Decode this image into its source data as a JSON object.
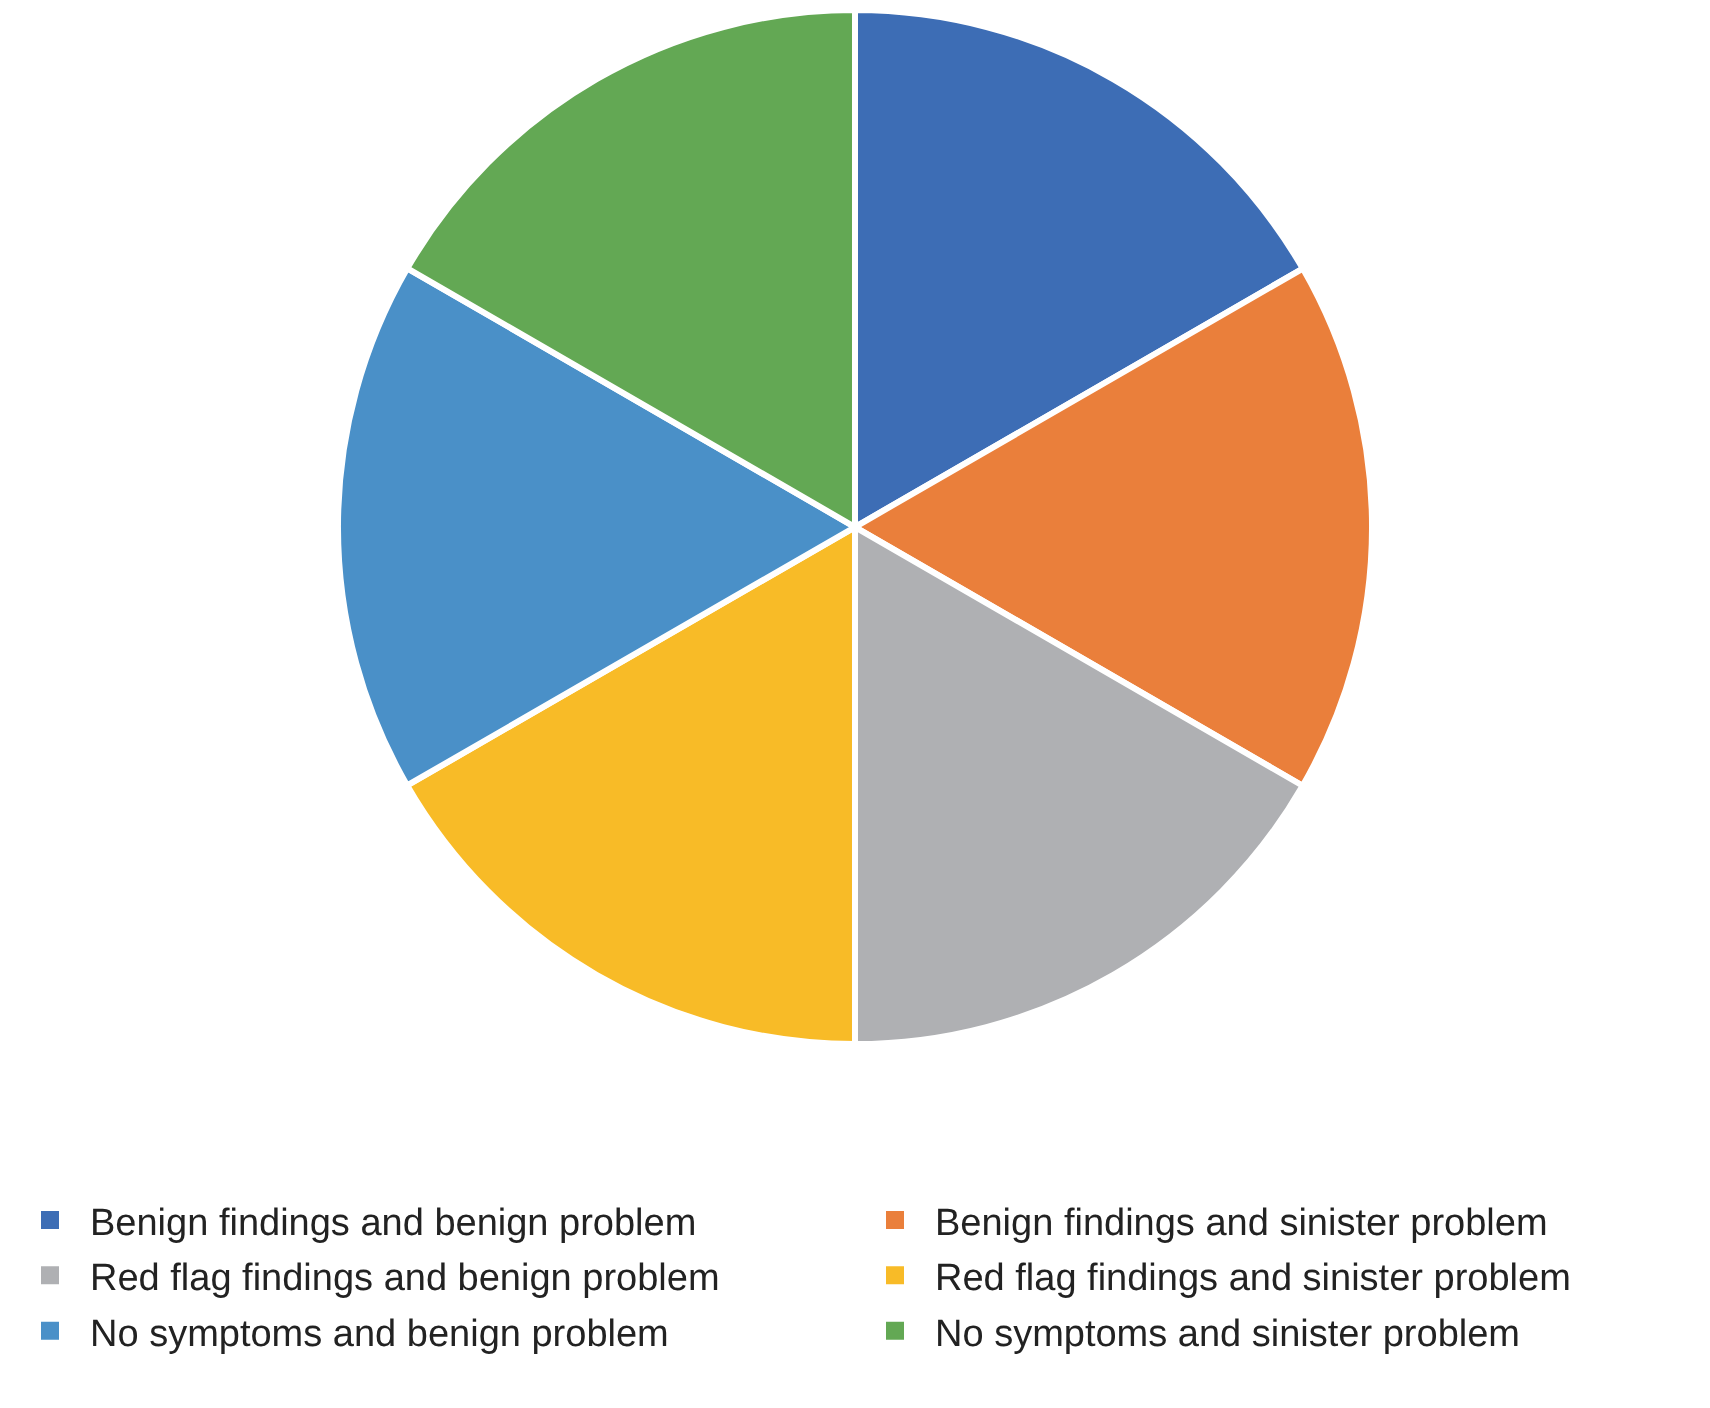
{
  "chart_data": {
    "type": "pie",
    "categories": [
      "Benign findings and benign problem",
      "Benign findings and sinister problem",
      "Red flag findings and benign problem",
      "Red flag findings and sinister problem",
      "No symptoms and benign problem",
      "No symptoms and sinister problem"
    ],
    "values": [
      16.67,
      16.67,
      16.66,
      16.67,
      16.67,
      16.66
    ],
    "colors": [
      "#3d6db5",
      "#ea7f3b",
      "#afb0b3",
      "#f8bb27",
      "#4a90c8",
      "#63a854"
    ],
    "legend": "bottom"
  }
}
